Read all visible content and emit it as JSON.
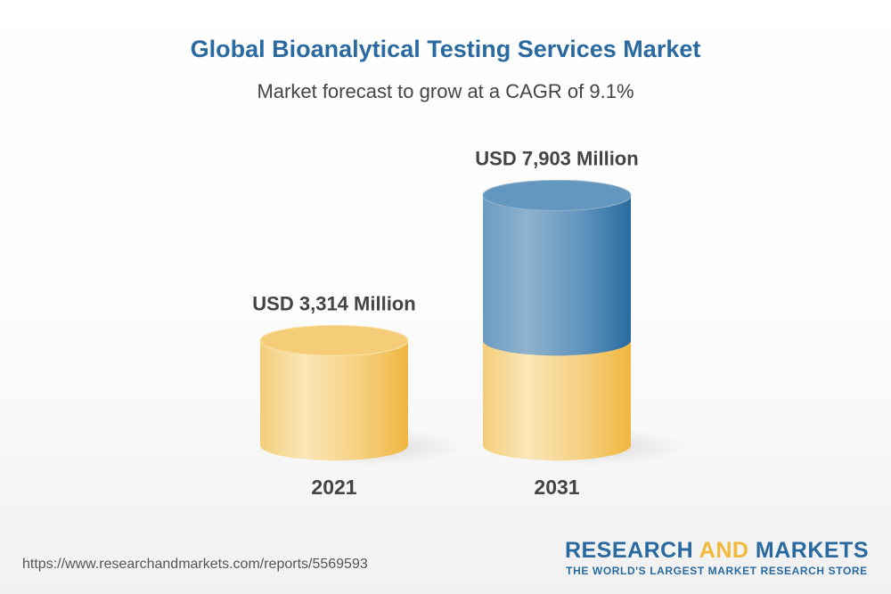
{
  "title": "Global Bioanalytical Testing Services Market",
  "subtitle": "Market forecast to grow at a CAGR of 9.1%",
  "chart_data": {
    "type": "bar",
    "style": "3d-cylinder",
    "categories": [
      "2021",
      "2031"
    ],
    "values": [
      3314,
      7903
    ],
    "data_labels": [
      "USD 3,314 Million",
      "USD 7,903 Million"
    ],
    "unit": "USD Million",
    "colors": {
      "base": "#f2b93b",
      "growth": "#2a6aa0"
    }
  },
  "footer": {
    "url": "https://www.researchandmarkets.com/reports/5569593",
    "logo_part1": "RESEARCH ",
    "logo_part2": "AND",
    "logo_part3": " MARKETS",
    "tagline": "THE WORLD'S LARGEST MARKET RESEARCH STORE"
  }
}
